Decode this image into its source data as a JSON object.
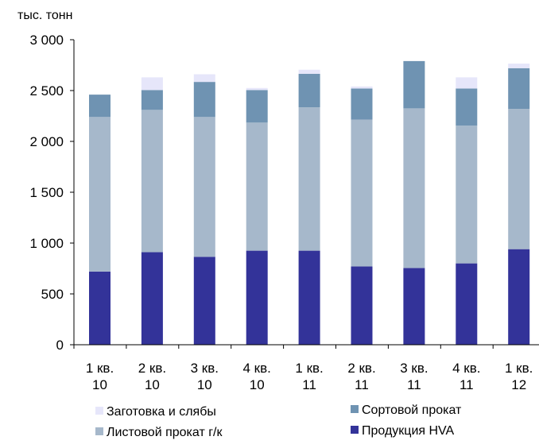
{
  "chart_data": {
    "type": "bar",
    "stacked": true,
    "unit_label": "тыс. тонн",
    "categories": [
      [
        "1 кв.",
        "10"
      ],
      [
        "2 кв.",
        "10"
      ],
      [
        "3 кв.",
        "10"
      ],
      [
        "4 кв.",
        "10"
      ],
      [
        "1 кв.",
        "11"
      ],
      [
        "2 кв.",
        "11"
      ],
      [
        "3 кв.",
        "11"
      ],
      [
        "4 кв.",
        "11"
      ],
      [
        "1 кв.",
        "12"
      ]
    ],
    "series": [
      {
        "name": "Продукция HVA",
        "color": "#333399",
        "values": [
          720,
          910,
          865,
          925,
          925,
          770,
          755,
          800,
          940
        ]
      },
      {
        "name": "Листовой прокат г/к",
        "color": "#A6B8CB",
        "values": [
          1520,
          1400,
          1375,
          1260,
          1410,
          1445,
          1570,
          1355,
          1380
        ]
      },
      {
        "name": "Сортовой прокат",
        "color": "#6F93B2",
        "values": [
          220,
          195,
          345,
          320,
          330,
          305,
          465,
          365,
          400
        ]
      },
      {
        "name": "Заготовка и слябы",
        "color": "#E6E6FA",
        "values": [
          0,
          125,
          75,
          20,
          40,
          20,
          0,
          110,
          45
        ]
      }
    ],
    "ylim": [
      0,
      3000
    ],
    "y_ticks": [
      0,
      500,
      1000,
      1500,
      2000,
      2500,
      3000
    ],
    "y_tick_labels": [
      "0",
      "500",
      "1 000",
      "1 500",
      "2 000",
      "2 500",
      "3 000"
    ],
    "grid": false,
    "legend": {
      "placement": "bottom",
      "order": [
        "Заготовка и слябы",
        "Сортовой прокат",
        "Листовой прокат г/к",
        "Продукция HVA"
      ]
    }
  }
}
